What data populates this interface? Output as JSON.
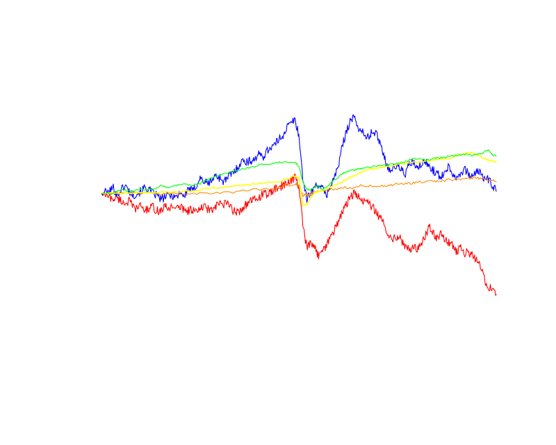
{
  "chart_data": {
    "type": "line",
    "title": "",
    "xlabel": "",
    "ylabel": "",
    "axes_visible": false,
    "grid": false,
    "legend": "none",
    "xlim": [
      0,
      100
    ],
    "ylim": [
      -45,
      30
    ],
    "series": [
      {
        "color": "#0000ff",
        "points": [
          [
            0,
            0
          ],
          [
            2,
            0.5
          ],
          [
            3,
            1.5
          ],
          [
            4,
            -0.5
          ],
          [
            5,
            1
          ],
          [
            6,
            2
          ],
          [
            7,
            0.5
          ],
          [
            8,
            -0.5
          ],
          [
            9,
            0
          ],
          [
            10,
            0.5
          ],
          [
            11,
            1.5
          ],
          [
            12,
            1
          ],
          [
            13,
            0
          ],
          [
            14,
            -0.5
          ],
          [
            15,
            -1.5
          ],
          [
            16,
            -1
          ],
          [
            17,
            -0.5
          ],
          [
            18,
            -0.5
          ],
          [
            19,
            -1
          ],
          [
            20,
            0.5
          ],
          [
            21,
            -1
          ],
          [
            22,
            1.5
          ],
          [
            23,
            0.5
          ],
          [
            24,
            2
          ],
          [
            25,
            4
          ],
          [
            26,
            3
          ],
          [
            27,
            2.5
          ],
          [
            28,
            3.5
          ],
          [
            29,
            4.5
          ],
          [
            30,
            4
          ],
          [
            31,
            3
          ],
          [
            32,
            4
          ],
          [
            33,
            5
          ],
          [
            34,
            6
          ],
          [
            35,
            7.5
          ],
          [
            36,
            8.5
          ],
          [
            37,
            8
          ],
          [
            38,
            8.5
          ],
          [
            39,
            9
          ],
          [
            40,
            10
          ],
          [
            41,
            9.5
          ],
          [
            42,
            11
          ],
          [
            43,
            12
          ],
          [
            44,
            12.5
          ],
          [
            45,
            14
          ],
          [
            46,
            15
          ],
          [
            47,
            17
          ],
          [
            48,
            18
          ],
          [
            49,
            19
          ],
          [
            50,
            15
          ],
          [
            51,
            4
          ],
          [
            52,
            -1.5
          ],
          [
            53,
            0
          ],
          [
            54,
            1.5
          ],
          [
            55,
            2.5
          ],
          [
            56,
            1
          ],
          [
            57,
            -0.5
          ],
          [
            58,
            2
          ],
          [
            59,
            4
          ],
          [
            60,
            7
          ],
          [
            61,
            12
          ],
          [
            62,
            16
          ],
          [
            63,
            18.5
          ],
          [
            64,
            19.5
          ],
          [
            65,
            17
          ],
          [
            66,
            16
          ],
          [
            67,
            14
          ],
          [
            68,
            15
          ],
          [
            69,
            16
          ],
          [
            70,
            14.5
          ],
          [
            71,
            12
          ],
          [
            72,
            8
          ],
          [
            73,
            6
          ],
          [
            74,
            6.5
          ],
          [
            75,
            7
          ],
          [
            76,
            6
          ],
          [
            77,
            5
          ],
          [
            78,
            7.5
          ],
          [
            79,
            8
          ],
          [
            80,
            6
          ],
          [
            81,
            7.5
          ],
          [
            82,
            8
          ],
          [
            83,
            7
          ],
          [
            84,
            6
          ],
          [
            85,
            5
          ],
          [
            86,
            4
          ],
          [
            87,
            6
          ],
          [
            88,
            7
          ],
          [
            89,
            5
          ],
          [
            90,
            4
          ],
          [
            91,
            5.5
          ],
          [
            92,
            6
          ],
          [
            93,
            5
          ],
          [
            94,
            4
          ],
          [
            95,
            6
          ],
          [
            96,
            5
          ],
          [
            97,
            4
          ],
          [
            98,
            3.5
          ],
          [
            99,
            2
          ],
          [
            100,
            0.5
          ]
        ]
      },
      {
        "color": "#ff0000",
        "points": [
          [
            0,
            0
          ],
          [
            2,
            -1
          ],
          [
            3,
            -1.5
          ],
          [
            4,
            -1
          ],
          [
            5,
            -2
          ],
          [
            6,
            -2.5
          ],
          [
            7,
            -2
          ],
          [
            8,
            -3.5
          ],
          [
            9,
            -4
          ],
          [
            10,
            -3
          ],
          [
            11,
            -4.5
          ],
          [
            12,
            -4
          ],
          [
            13,
            -3.5
          ],
          [
            14,
            -4.5
          ],
          [
            15,
            -4.5
          ],
          [
            16,
            -3.5
          ],
          [
            17,
            -4
          ],
          [
            18,
            -3
          ],
          [
            19,
            -4
          ],
          [
            20,
            -3.5
          ],
          [
            21,
            -4
          ],
          [
            22,
            -4.5
          ],
          [
            23,
            -4
          ],
          [
            24,
            -5
          ],
          [
            25,
            -4
          ],
          [
            26,
            -3.5
          ],
          [
            27,
            -4
          ],
          [
            28,
            -4.5
          ],
          [
            29,
            -3.5
          ],
          [
            30,
            -2.5
          ],
          [
            31,
            -3
          ],
          [
            32,
            -2.5
          ],
          [
            33,
            -4
          ],
          [
            34,
            -5
          ],
          [
            35,
            -4.5
          ],
          [
            36,
            -3.5
          ],
          [
            37,
            -2.5
          ],
          [
            38,
            -2
          ],
          [
            39,
            -1.5
          ],
          [
            40,
            -1
          ],
          [
            41,
            0
          ],
          [
            42,
            -0.5
          ],
          [
            43,
            0.5
          ],
          [
            44,
            1
          ],
          [
            45,
            1.5
          ],
          [
            46,
            2
          ],
          [
            47,
            2.5
          ],
          [
            48,
            3.5
          ],
          [
            49,
            4
          ],
          [
            50,
            2
          ],
          [
            51,
            -8
          ],
          [
            52,
            -14
          ],
          [
            53,
            -13
          ],
          [
            54,
            -14
          ],
          [
            55,
            -16
          ],
          [
            56,
            -14
          ],
          [
            57,
            -13.5
          ],
          [
            58,
            -11
          ],
          [
            59,
            -9.5
          ],
          [
            60,
            -7
          ],
          [
            61,
            -5
          ],
          [
            62,
            -3
          ],
          [
            63,
            -1
          ],
          [
            64,
            0
          ],
          [
            65,
            -1
          ],
          [
            66,
            -2
          ],
          [
            67,
            -1.5
          ],
          [
            68,
            -3
          ],
          [
            69,
            -4
          ],
          [
            70,
            -5.5
          ],
          [
            71,
            -7
          ],
          [
            72,
            -9
          ],
          [
            73,
            -11
          ],
          [
            74,
            -11.5
          ],
          [
            75,
            -11
          ],
          [
            76,
            -12
          ],
          [
            77,
            -14
          ],
          [
            78,
            -14.5
          ],
          [
            79,
            -13.5
          ],
          [
            80,
            -14.5
          ],
          [
            81,
            -13
          ],
          [
            82,
            -11
          ],
          [
            83,
            -8.5
          ],
          [
            84,
            -10
          ],
          [
            85,
            -11.5
          ],
          [
            86,
            -10.5
          ],
          [
            87,
            -12
          ],
          [
            88,
            -12.5
          ],
          [
            89,
            -13.5
          ],
          [
            90,
            -15
          ],
          [
            91,
            -14
          ],
          [
            92,
            -15.5
          ],
          [
            93,
            -15
          ],
          [
            94,
            -16
          ],
          [
            95,
            -17
          ],
          [
            96,
            -19
          ],
          [
            97,
            -22
          ],
          [
            98,
            -24
          ],
          [
            99,
            -24.5
          ],
          [
            100,
            -26
          ]
        ]
      },
      {
        "color": "#00ff00",
        "points": [
          [
            0,
            0
          ],
          [
            3,
            0
          ],
          [
            5,
            1
          ],
          [
            7,
            0.5
          ],
          [
            9,
            0.8
          ],
          [
            11,
            1
          ],
          [
            13,
            1
          ],
          [
            15,
            2
          ],
          [
            17,
            1.5
          ],
          [
            19,
            2
          ],
          [
            21,
            2.5
          ],
          [
            23,
            2
          ],
          [
            25,
            2.5
          ],
          [
            27,
            3.5
          ],
          [
            29,
            4.5
          ],
          [
            31,
            5
          ],
          [
            33,
            5.5
          ],
          [
            35,
            6
          ],
          [
            37,
            6.5
          ],
          [
            39,
            7
          ],
          [
            41,
            7.5
          ],
          [
            43,
            7.5
          ],
          [
            45,
            8
          ],
          [
            47,
            8
          ],
          [
            49,
            8
          ],
          [
            50,
            7
          ],
          [
            51,
            3
          ],
          [
            52,
            1
          ],
          [
            53,
            1
          ],
          [
            54,
            1.5
          ],
          [
            55,
            2
          ],
          [
            56,
            1
          ],
          [
            57,
            1.5
          ],
          [
            58,
            2.5
          ],
          [
            59,
            3.5
          ],
          [
            60,
            4
          ],
          [
            61,
            5
          ],
          [
            62,
            5.5
          ],
          [
            63,
            5.8
          ],
          [
            64,
            6
          ],
          [
            65,
            6.2
          ],
          [
            66,
            6.5
          ],
          [
            68,
            6.8
          ],
          [
            70,
            7
          ],
          [
            72,
            7.2
          ],
          [
            74,
            7.5
          ],
          [
            76,
            7.8
          ],
          [
            78,
            8.5
          ],
          [
            80,
            9
          ],
          [
            82,
            8.5
          ],
          [
            84,
            9
          ],
          [
            86,
            9.2
          ],
          [
            88,
            9.5
          ],
          [
            90,
            9.8
          ],
          [
            92,
            10
          ],
          [
            94,
            9.8
          ],
          [
            96,
            10.2
          ],
          [
            98,
            11
          ],
          [
            99,
            10
          ],
          [
            100,
            9.5
          ]
        ]
      },
      {
        "color": "#ffff00",
        "points": [
          [
            0,
            0
          ],
          [
            5,
            0
          ],
          [
            10,
            0
          ],
          [
            15,
            0.3
          ],
          [
            20,
            0.3
          ],
          [
            25,
            1
          ],
          [
            30,
            1.5
          ],
          [
            35,
            2
          ],
          [
            40,
            2.5
          ],
          [
            45,
            3
          ],
          [
            49,
            4.5
          ],
          [
            50,
            4
          ],
          [
            51,
            -3
          ],
          [
            52,
            -3
          ],
          [
            53,
            -1
          ],
          [
            54,
            0
          ],
          [
            55,
            0.5
          ],
          [
            57,
            1
          ],
          [
            59,
            2
          ],
          [
            61,
            3
          ],
          [
            63,
            4
          ],
          [
            65,
            5
          ],
          [
            67,
            6
          ],
          [
            70,
            6.5
          ],
          [
            73,
            7
          ],
          [
            76,
            7.5
          ],
          [
            80,
            8
          ],
          [
            84,
            8.5
          ],
          [
            88,
            9
          ],
          [
            91,
            10
          ],
          [
            94,
            10.5
          ],
          [
            96,
            9.5
          ],
          [
            98,
            8.5
          ],
          [
            100,
            8
          ]
        ]
      },
      {
        "color": "#ff8c00",
        "points": [
          [
            0,
            0
          ],
          [
            5,
            0
          ],
          [
            10,
            0
          ],
          [
            15,
            -0.2
          ],
          [
            20,
            0
          ],
          [
            25,
            0
          ],
          [
            30,
            0
          ],
          [
            35,
            0.5
          ],
          [
            40,
            1
          ],
          [
            45,
            1.5
          ],
          [
            49,
            2.5
          ],
          [
            50,
            2
          ],
          [
            51,
            -0.5
          ],
          [
            52,
            -0.5
          ],
          [
            53,
            0
          ],
          [
            54,
            0.3
          ],
          [
            56,
            0.5
          ],
          [
            58,
            1
          ],
          [
            60,
            1
          ],
          [
            62,
            1.5
          ],
          [
            64,
            1.5
          ],
          [
            66,
            2
          ],
          [
            68,
            1.8
          ],
          [
            70,
            2
          ],
          [
            72,
            2
          ],
          [
            74,
            2.2
          ],
          [
            76,
            2.5
          ],
          [
            78,
            2.5
          ],
          [
            80,
            2.8
          ],
          [
            82,
            3
          ],
          [
            84,
            3
          ],
          [
            86,
            3.2
          ],
          [
            88,
            3.5
          ],
          [
            90,
            3.5
          ],
          [
            92,
            3.8
          ],
          [
            94,
            4
          ],
          [
            96,
            3.8
          ],
          [
            98,
            3.5
          ],
          [
            100,
            3
          ]
        ]
      }
    ]
  }
}
